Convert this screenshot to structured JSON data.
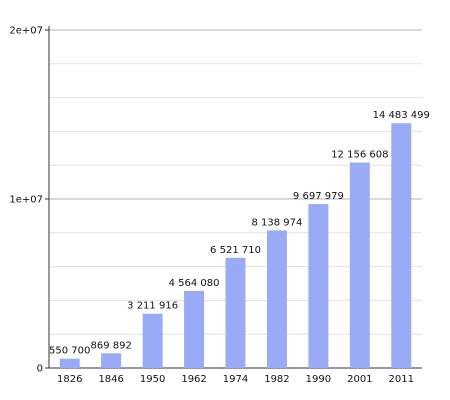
{
  "chart_data": {
    "type": "bar",
    "categories": [
      "1826",
      "1846",
      "1950",
      "1962",
      "1974",
      "1982",
      "1990",
      "2001",
      "2011"
    ],
    "values": [
      550700,
      869892,
      3211916,
      4564080,
      6521710,
      8138974,
      9697979,
      12156608,
      14483499
    ],
    "value_labels": [
      "550 700",
      "869 892",
      "3 211 916",
      "4 564 080",
      "6 521 710",
      "8 138 974",
      "9 697 979",
      "12 156 608",
      "14 483 499"
    ],
    "ylim": [
      0,
      20000000
    ],
    "y_ticks": [
      0,
      10000000,
      20000000
    ],
    "y_tick_labels": [
      "0",
      "1e+07",
      "2e+07"
    ],
    "grid": true,
    "bar_color": "#99aaf7",
    "grid_color": "#c8c8c8"
  }
}
